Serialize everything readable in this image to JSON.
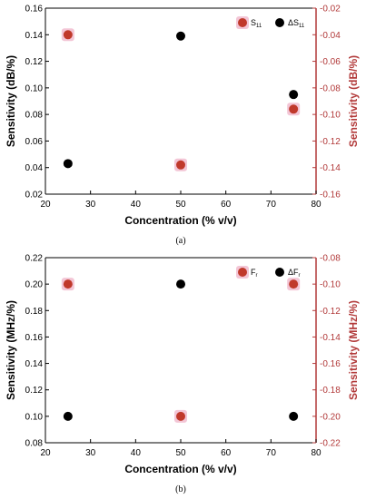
{
  "colors": {
    "red": "#c0392b",
    "black": "#000000",
    "right_axis": "#b23a3a",
    "halo": "#f3c6d6"
  },
  "chart_data": [
    {
      "type": "scatter",
      "caption": "(a)",
      "xlabel": "Concentration (% v/v)",
      "ylabel": "Sensitivity (dB/%)",
      "y2label": "Sensitivity (dB/%)",
      "xlim": [
        20,
        80
      ],
      "ylim": [
        0.02,
        0.16
      ],
      "y2lim": [
        -0.16,
        -0.02
      ],
      "xticks": [
        "20",
        "30",
        "40",
        "50",
        "60",
        "70",
        "80"
      ],
      "yticks": [
        "0.02",
        "0.04",
        "0.06",
        "0.08",
        "0.10",
        "0.12",
        "0.14",
        "0.16"
      ],
      "y2ticks": [
        "-0.16",
        "-0.14",
        "-0.12",
        "-0.10",
        "-0.08",
        "-0.06",
        "-0.04",
        "-0.02"
      ],
      "legend_position": "top-right",
      "series": [
        {
          "name": "S11",
          "label_main": "S",
          "label_sub": "11",
          "axis": "right",
          "color": "red",
          "x": [
            25,
            50,
            75
          ],
          "y": [
            -0.04,
            -0.138,
            -0.096
          ]
        },
        {
          "name": "ΔS11",
          "label_main": "ΔS",
          "label_sub": "11",
          "axis": "left",
          "color": "black",
          "x": [
            25,
            50,
            75
          ],
          "y": [
            0.043,
            0.139,
            0.095
          ]
        }
      ]
    },
    {
      "type": "scatter",
      "caption": "(b)",
      "xlabel": "Concentration (% v/v)",
      "ylabel": "Sensitivity (MHz/%)",
      "y2label": "Sensitivity (MHz/%)",
      "xlim": [
        20,
        80
      ],
      "ylim": [
        0.08,
        0.22
      ],
      "y2lim": [
        -0.22,
        -0.08
      ],
      "xticks": [
        "20",
        "30",
        "40",
        "50",
        "60",
        "70",
        "80"
      ],
      "yticks": [
        "0.08",
        "0.10",
        "0.12",
        "0.14",
        "0.16",
        "0.18",
        "0.20",
        "0.22"
      ],
      "y2ticks": [
        "-0.22",
        "-0.20",
        "-0.18",
        "-0.16",
        "-0.14",
        "-0.12",
        "-0.10",
        "-0.08"
      ],
      "legend_position": "top-right",
      "series": [
        {
          "name": "Fr",
          "label_main": "F",
          "label_sub": "r",
          "axis": "right",
          "color": "red",
          "x": [
            25,
            50,
            75
          ],
          "y": [
            -0.1,
            -0.2,
            -0.1
          ]
        },
        {
          "name": "ΔFr",
          "label_main": "ΔF",
          "label_sub": "r",
          "axis": "left",
          "color": "black",
          "x": [
            25,
            50,
            75
          ],
          "y": [
            0.1,
            0.2,
            0.1
          ]
        }
      ]
    }
  ]
}
